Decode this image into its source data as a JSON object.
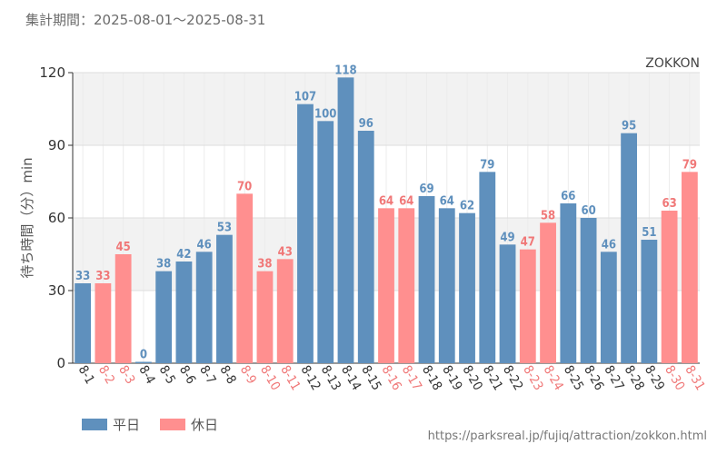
{
  "period_label": "集計期間：2025-08-01～2025-08-31",
  "source_url": "https://parksreal.jp/fujiq/attraction/zokkon.html",
  "colors": {
    "weekday": "#5f90bd",
    "holiday": "#ff8f8f",
    "weekday_text": "#5f90bd",
    "holiday_text": "#f07878",
    "band": "#f2f2f2",
    "grid": "#dddddd"
  },
  "chart_data": {
    "type": "bar",
    "title": "ZOKKON",
    "ylabel": "待ち時間（分）min",
    "ylim": [
      0,
      120
    ],
    "yticks": [
      0,
      30,
      60,
      90,
      120
    ],
    "categories": [
      "8-1",
      "8-2",
      "8-3",
      "8-4",
      "8-5",
      "8-6",
      "8-7",
      "8-8",
      "8-9",
      "8-10",
      "8-11",
      "8-12",
      "8-13",
      "8-14",
      "8-15",
      "8-16",
      "8-17",
      "8-18",
      "8-19",
      "8-20",
      "8-21",
      "8-22",
      "8-23",
      "8-24",
      "8-25",
      "8-26",
      "8-27",
      "8-28",
      "8-29",
      "8-30",
      "8-31"
    ],
    "values": [
      33,
      33,
      45,
      0,
      38,
      42,
      46,
      53,
      70,
      38,
      43,
      107,
      100,
      118,
      96,
      64,
      64,
      69,
      64,
      62,
      79,
      49,
      47,
      58,
      66,
      60,
      46,
      95,
      51,
      63,
      79
    ],
    "day_type": [
      "weekday",
      "holiday",
      "holiday",
      "weekday",
      "weekday",
      "weekday",
      "weekday",
      "weekday",
      "holiday",
      "holiday",
      "holiday",
      "weekday",
      "weekday",
      "weekday",
      "weekday",
      "holiday",
      "holiday",
      "weekday",
      "weekday",
      "weekday",
      "weekday",
      "weekday",
      "holiday",
      "holiday",
      "weekday",
      "weekday",
      "weekday",
      "weekday",
      "weekday",
      "holiday",
      "holiday"
    ],
    "series": [
      {
        "key": "weekday",
        "name": "平日"
      },
      {
        "key": "holiday",
        "name": "休日"
      }
    ],
    "legend_position": "bottom-left",
    "grid": true
  }
}
